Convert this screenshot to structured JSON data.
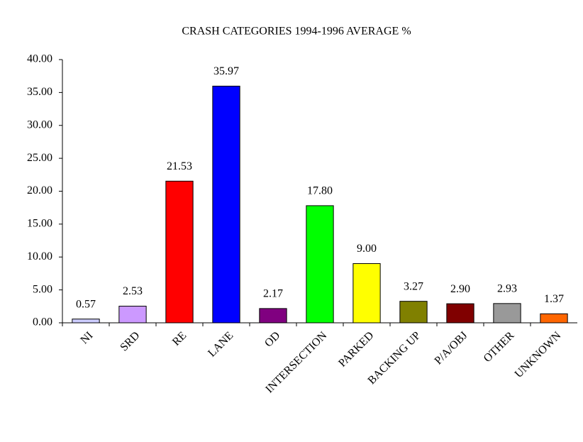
{
  "chart_data": {
    "type": "bar",
    "title": "CRASH CATEGORIES 1994-1996 AVERAGE %",
    "categories": [
      "NI",
      "SRD",
      "RE",
      "LANE",
      "OD",
      "INTERSECTION",
      "PARKED",
      "BACKING UP",
      "P/A/OBJ",
      "OTHER",
      "UNKNOWN"
    ],
    "values": [
      0.57,
      2.53,
      21.53,
      35.97,
      2.17,
      17.8,
      9.0,
      3.27,
      2.9,
      2.93,
      1.37
    ],
    "value_labels": [
      "0.57",
      "2.53",
      "21.53",
      "35.97",
      "2.17",
      "17.80",
      "9.00",
      "3.27",
      "2.90",
      "2.93",
      "1.37"
    ],
    "colors": [
      "#ccccff",
      "#cc99ff",
      "#ff0000",
      "#0000ff",
      "#800080",
      "#00ff00",
      "#ffff00",
      "#808000",
      "#800000",
      "#999999",
      "#ff6600"
    ],
    "ylim": [
      0,
      40
    ],
    "yticks": [
      {
        "value": 0,
        "label": "0.00"
      },
      {
        "value": 5,
        "label": "5.00"
      },
      {
        "value": 10,
        "label": "10.00"
      },
      {
        "value": 15,
        "label": "15.00"
      },
      {
        "value": 20,
        "label": "20.00"
      },
      {
        "value": 25,
        "label": "25.00"
      },
      {
        "value": 30,
        "label": "30.00"
      },
      {
        "value": 35,
        "label": "35.00"
      },
      {
        "value": 40,
        "label": "40.00"
      }
    ],
    "grid": false
  }
}
